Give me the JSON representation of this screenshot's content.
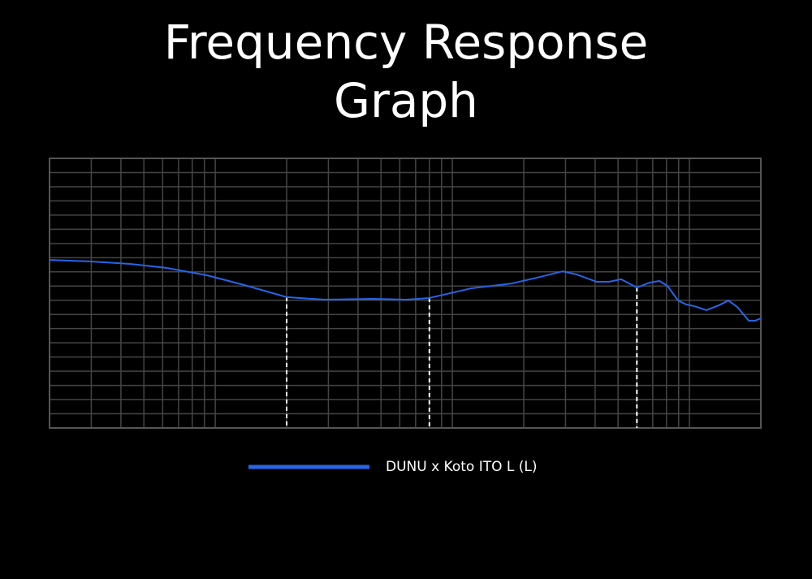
{
  "chart_data": {
    "type": "line",
    "title": "Frequency Response Graph",
    "x": [
      20,
      29.4,
      43.7,
      62.2,
      92.4,
      132,
      200,
      290,
      465,
      637,
      800,
      1200,
      1780,
      2340,
      2920,
      3340,
      4060,
      4580,
      5150,
      6000,
      6790,
      7460,
      8070,
      8950,
      9690,
      10480,
      11800,
      13280,
      14590,
      15920,
      17780,
      18920,
      20000
    ],
    "series": [
      {
        "name": "DUNU x Koto ITO L (L)",
        "color": "#2566e8",
        "values": [
          89.2,
          88.7,
          87.8,
          86.4,
          83.8,
          80.4,
          76.1,
          75.2,
          75.5,
          75.2,
          75.8,
          79.2,
          80.9,
          83.2,
          85.2,
          84.1,
          81.5,
          81.5,
          82.4,
          79.5,
          81.2,
          81.8,
          80.1,
          74.9,
          73.5,
          72.9,
          71.5,
          73.2,
          74.9,
          72.6,
          67.8,
          67.8,
          68.6
        ]
      }
    ],
    "xlim": [
      20,
      20000
    ],
    "xscale": "log",
    "xticks": [
      20,
      30,
      40,
      50,
      60,
      70,
      80,
      90,
      100,
      200,
      300,
      400,
      500,
      600,
      700,
      800,
      900,
      1000,
      2000,
      3000,
      4000,
      5000,
      6000,
      7000,
      8000,
      9000,
      10000,
      20000
    ],
    "ylim": [
      30,
      125
    ],
    "yticks": [
      30,
      35,
      40,
      45,
      50,
      55,
      60,
      65,
      70,
      75,
      80,
      85,
      90,
      95,
      100,
      105,
      110,
      115,
      120,
      125
    ],
    "markers": [
      200,
      800,
      6000
    ],
    "grid": true
  }
}
